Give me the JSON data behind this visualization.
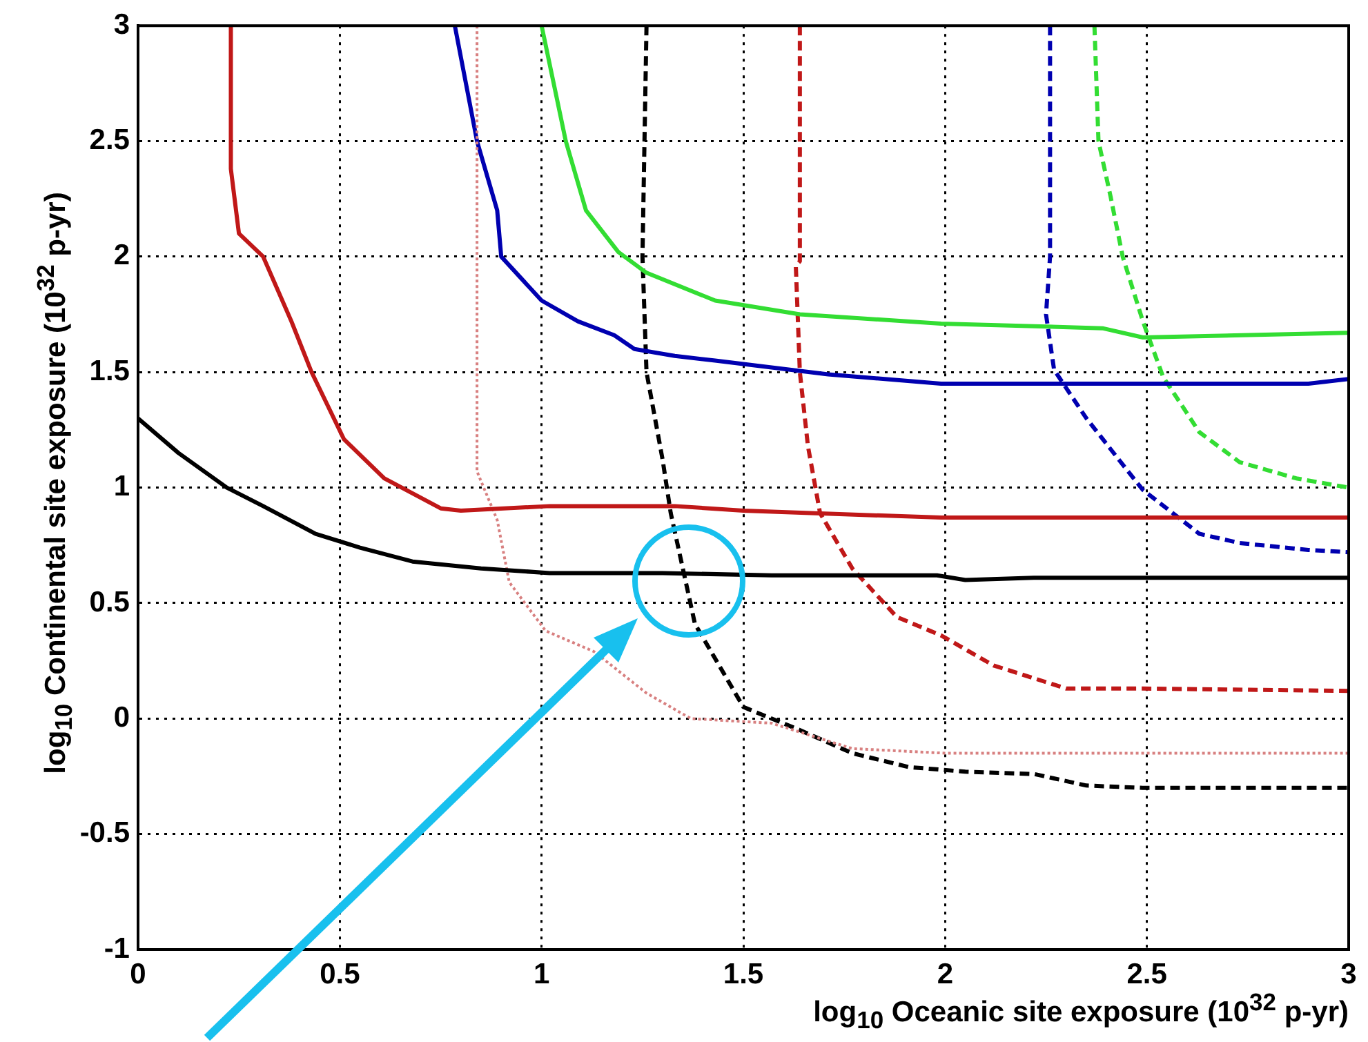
{
  "chart_data": {
    "type": "line",
    "xlabel": "log$_{10}$ Oceanic site exposure (10$^{32}$ p-yr)",
    "ylabel": "log$_{10}$ Continental site exposure (10$^{32}$ p-yr)",
    "xlim": [
      0,
      3
    ],
    "ylim": [
      -1,
      3
    ],
    "xticks": [
      0,
      0.5,
      1,
      1.5,
      2,
      2.5,
      3
    ],
    "yticks": [
      -1,
      -0.5,
      0,
      0.5,
      1,
      1.5,
      2,
      2.5,
      3
    ],
    "grid": true,
    "legend": false,
    "marker": "none",
    "series": [
      {
        "color": "#000000",
        "line_style": "solid",
        "x": [
          0,
          0.1,
          0.22,
          0.31,
          0.44,
          0.55,
          0.68,
          0.85,
          1.02,
          1.3,
          1.57,
          1.98,
          2.05,
          2.22,
          3
        ],
        "values": [
          1.3,
          1.15,
          1.0,
          0.92,
          0.8,
          0.74,
          0.68,
          0.65,
          0.63,
          0.63,
          0.62,
          0.62,
          0.6,
          0.61,
          0.61
        ]
      },
      {
        "color": "#c01818",
        "line_style": "solid",
        "x": [
          0.23,
          0.23,
          0.25,
          0.31,
          0.38,
          0.43,
          0.51,
          0.61,
          0.75,
          0.8,
          1.02,
          1.33,
          1.5,
          1.99,
          3
        ],
        "values": [
          3,
          2.38,
          2.1,
          2.0,
          1.72,
          1.5,
          1.21,
          1.04,
          0.91,
          0.9,
          0.92,
          0.92,
          0.9,
          0.87,
          0.87
        ]
      },
      {
        "color": "#d88080",
        "line_style": "dotted",
        "x": [
          0.84,
          0.84,
          0.89,
          0.92,
          1.01,
          1.13,
          1.26,
          1.37,
          1.57,
          1.77,
          2.0,
          3
        ],
        "values": [
          3,
          1.07,
          0.86,
          0.59,
          0.38,
          0.29,
          0.11,
          0.0,
          -0.02,
          -0.13,
          -0.15,
          -0.15
        ]
      },
      {
        "color": "#0000b0",
        "line_style": "solid",
        "x": [
          0.785,
          0.84,
          0.89,
          0.9,
          1.0,
          1.09,
          1.18,
          1.23,
          1.33,
          1.43,
          1.71,
          1.99,
          2.39,
          2.9,
          3
        ],
        "values": [
          3,
          2.5,
          2.2,
          2.0,
          1.81,
          1.72,
          1.66,
          1.6,
          1.57,
          1.55,
          1.49,
          1.45,
          1.45,
          1.45,
          1.47
        ]
      },
      {
        "color": "#33dd33",
        "line_style": "solid",
        "x": [
          1.0,
          1.06,
          1.11,
          1.19,
          1.26,
          1.43,
          1.64,
          1.99,
          2.39,
          2.49,
          3
        ],
        "values": [
          3,
          2.5,
          2.2,
          2.02,
          1.93,
          1.81,
          1.75,
          1.71,
          1.69,
          1.65,
          1.67
        ]
      },
      {
        "color": "#000000",
        "line_style": "dashed",
        "x": [
          1.26,
          1.25,
          1.26,
          1.3,
          1.32,
          1.35,
          1.38,
          1.43,
          1.5,
          1.64,
          1.77,
          1.91,
          2.05,
          2.22,
          2.35,
          2.49,
          3
        ],
        "values": [
          3,
          2.0,
          1.5,
          1.12,
          0.89,
          0.65,
          0.41,
          0.26,
          0.05,
          -0.05,
          -0.15,
          -0.21,
          -0.23,
          -0.24,
          -0.29,
          -0.3,
          -0.3
        ]
      },
      {
        "color": "#c01818",
        "line_style": "dashed",
        "x": [
          1.64,
          1.64,
          1.63,
          1.64,
          1.66,
          1.69,
          1.77,
          1.88,
          1.99,
          2.12,
          2.3,
          2.49,
          3
        ],
        "values": [
          3,
          1.98,
          1.96,
          1.5,
          1.18,
          0.89,
          0.65,
          0.44,
          0.36,
          0.23,
          0.13,
          0.13,
          0.12
        ]
      },
      {
        "color": "#0000b0",
        "line_style": "dashed",
        "x": [
          2.26,
          2.26,
          2.26,
          2.25,
          2.27,
          2.35,
          2.44,
          2.49,
          2.63,
          2.73,
          2.9,
          3
        ],
        "values": [
          3,
          2.5,
          2.0,
          1.75,
          1.51,
          1.3,
          1.1,
          0.99,
          0.8,
          0.76,
          0.73,
          0.72
        ]
      },
      {
        "color": "#33dd33",
        "line_style": "dashed",
        "x": [
          2.37,
          2.38,
          2.41,
          2.44,
          2.49,
          2.54,
          2.63,
          2.73,
          2.87,
          3
        ],
        "values": [
          3,
          2.5,
          2.26,
          2.0,
          1.72,
          1.48,
          1.24,
          1.11,
          1.04,
          1.0
        ]
      }
    ]
  }
}
